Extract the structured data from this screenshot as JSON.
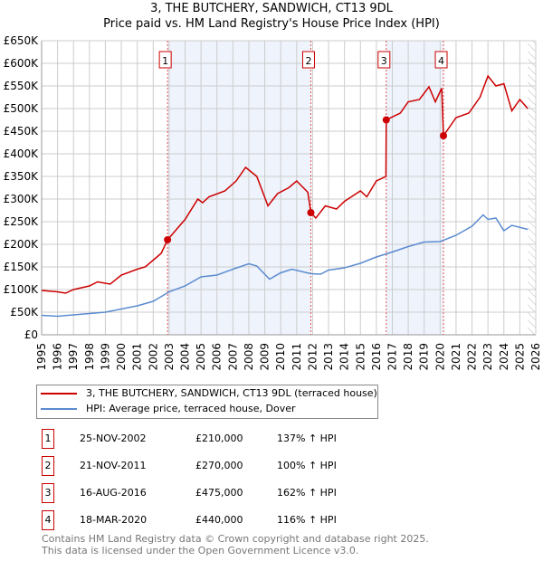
{
  "title": "3, THE BUTCHERY, SANDWICH, CT13 9DL",
  "subtitle": "Price paid vs. HM Land Registry's House Price Index (HPI)",
  "colors": {
    "property": "#cc0000",
    "hpi": "#5b8bd0",
    "shade": "#eef3fc"
  },
  "chart_data": {
    "type": "line",
    "xlim": [
      1995,
      2026
    ],
    "ylim": [
      0,
      650000
    ],
    "yticks": [
      0,
      50000,
      100000,
      150000,
      200000,
      250000,
      300000,
      350000,
      400000,
      450000,
      500000,
      550000,
      600000,
      650000
    ],
    "ytick_labels": [
      "£0",
      "£50K",
      "£100K",
      "£150K",
      "£200K",
      "£250K",
      "£300K",
      "£350K",
      "£400K",
      "£450K",
      "£500K",
      "£550K",
      "£600K",
      "£650K"
    ],
    "xtick_labels": [
      "1995",
      "1996",
      "1997",
      "1998",
      "1999",
      "2000",
      "2001",
      "2002",
      "2003",
      "2004",
      "2005",
      "2006",
      "2007",
      "2008",
      "2009",
      "2010",
      "2011",
      "2012",
      "2013",
      "2014",
      "2015",
      "2016",
      "2017",
      "2018",
      "2019",
      "2020",
      "2021",
      "2022",
      "2023",
      "2024",
      "2025",
      "2026"
    ],
    "hatch_from": 2025.5,
    "series": [
      {
        "name": "3, THE BUTCHERY, SANDWICH, CT13 9DL (terraced house)",
        "color": "#cc0000",
        "points": [
          [
            1995,
            98000
          ],
          [
            1996,
            95000
          ],
          [
            1996.5,
            92000
          ],
          [
            1997,
            100000
          ],
          [
            1998,
            108000
          ],
          [
            1998.5,
            117000
          ],
          [
            1999.3,
            112000
          ],
          [
            2000,
            132000
          ],
          [
            2001,
            145000
          ],
          [
            2001.5,
            150000
          ],
          [
            2002,
            165000
          ],
          [
            2002.5,
            180000
          ],
          [
            2002.9,
            210000
          ],
          [
            2004,
            255000
          ],
          [
            2004.8,
            300000
          ],
          [
            2005.1,
            292000
          ],
          [
            2005.5,
            305000
          ],
          [
            2006.5,
            318000
          ],
          [
            2007.2,
            340000
          ],
          [
            2007.8,
            370000
          ],
          [
            2008.5,
            350000
          ],
          [
            2009.2,
            285000
          ],
          [
            2009.8,
            312000
          ],
          [
            2010.5,
            325000
          ],
          [
            2011,
            340000
          ],
          [
            2011.7,
            315000
          ],
          [
            2011.89,
            270000
          ],
          [
            2012.2,
            258000
          ],
          [
            2012.8,
            285000
          ],
          [
            2013.5,
            278000
          ],
          [
            2014,
            295000
          ],
          [
            2015,
            318000
          ],
          [
            2015.4,
            305000
          ],
          [
            2016,
            340000
          ],
          [
            2016.6,
            350000
          ],
          [
            2016.62,
            475000
          ],
          [
            2017.5,
            490000
          ],
          [
            2018,
            515000
          ],
          [
            2018.7,
            520000
          ],
          [
            2019.3,
            548000
          ],
          [
            2019.7,
            515000
          ],
          [
            2020.1,
            545000
          ],
          [
            2020.21,
            440000
          ],
          [
            2021,
            480000
          ],
          [
            2021.8,
            490000
          ],
          [
            2022.5,
            525000
          ],
          [
            2023,
            572000
          ],
          [
            2023.5,
            550000
          ],
          [
            2024,
            555000
          ],
          [
            2024.5,
            495000
          ],
          [
            2025,
            520000
          ],
          [
            2025.5,
            500000
          ]
        ]
      },
      {
        "name": "HPI: Average price, terraced house, Dover",
        "color": "#5b8bd0",
        "points": [
          [
            1995,
            43000
          ],
          [
            1996,
            41000
          ],
          [
            1997,
            44000
          ],
          [
            1998,
            47000
          ],
          [
            1999,
            50000
          ],
          [
            2000,
            57000
          ],
          [
            2001,
            64000
          ],
          [
            2002,
            74000
          ],
          [
            2003,
            95000
          ],
          [
            2004,
            108000
          ],
          [
            2005,
            128000
          ],
          [
            2006,
            132000
          ],
          [
            2007,
            145000
          ],
          [
            2008,
            157000
          ],
          [
            2008.5,
            152000
          ],
          [
            2009.3,
            123000
          ],
          [
            2010,
            137000
          ],
          [
            2010.7,
            145000
          ],
          [
            2011.9,
            135000
          ],
          [
            2012.5,
            134000
          ],
          [
            2013,
            143000
          ],
          [
            2014,
            148000
          ],
          [
            2015,
            158000
          ],
          [
            2016,
            172000
          ],
          [
            2017,
            183000
          ],
          [
            2018,
            195000
          ],
          [
            2019,
            205000
          ],
          [
            2020,
            206000
          ],
          [
            2021,
            220000
          ],
          [
            2022,
            240000
          ],
          [
            2022.7,
            265000
          ],
          [
            2023,
            255000
          ],
          [
            2023.5,
            258000
          ],
          [
            2024,
            230000
          ],
          [
            2024.5,
            242000
          ],
          [
            2025.5,
            233000
          ]
        ]
      }
    ],
    "sales": [
      {
        "n": "1",
        "x": 2002.9,
        "y": 210000
      },
      {
        "n": "2",
        "x": 2011.89,
        "y": 270000
      },
      {
        "n": "3",
        "x": 2016.62,
        "y": 475000
      },
      {
        "n": "4",
        "x": 2020.21,
        "y": 440000
      }
    ]
  },
  "legend": [
    "3, THE BUTCHERY, SANDWICH, CT13 9DL (terraced house)",
    "HPI: Average price, terraced house, Dover"
  ],
  "rows": [
    {
      "n": "1",
      "date": "25-NOV-2002",
      "price": "£210,000",
      "hpi": "137% ↑ HPI"
    },
    {
      "n": "2",
      "date": "21-NOV-2011",
      "price": "£270,000",
      "hpi": "100% ↑ HPI"
    },
    {
      "n": "3",
      "date": "16-AUG-2016",
      "price": "£475,000",
      "hpi": "162% ↑ HPI"
    },
    {
      "n": "4",
      "date": "18-MAR-2020",
      "price": "£440,000",
      "hpi": "116% ↑ HPI"
    }
  ],
  "footer": [
    "Contains HM Land Registry data © Crown copyright and database right 2025.",
    "This data is licensed under the Open Government Licence v3.0."
  ]
}
